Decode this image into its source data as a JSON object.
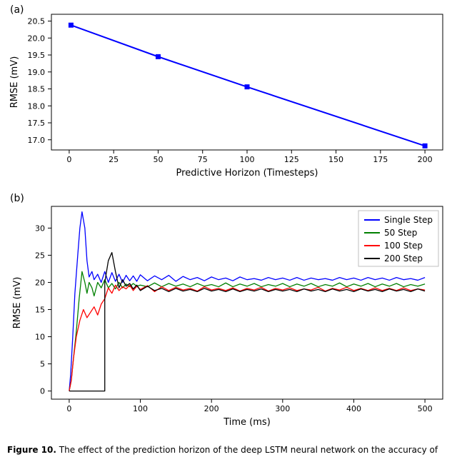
{
  "panel_a": {
    "label": "(a)",
    "type": "line",
    "xlabel": "Predictive Horizon (Timesteps)",
    "ylabel": "RMSE (mV)",
    "xlim": [
      -10,
      210
    ],
    "ylim": [
      16.7,
      20.7
    ],
    "xticks": [
      0,
      25,
      50,
      75,
      100,
      125,
      150,
      175,
      200
    ],
    "yticks": [
      17.0,
      17.5,
      18.0,
      18.5,
      19.0,
      19.5,
      20.0,
      20.5
    ],
    "marker": "square",
    "marker_size": 6,
    "line_color": "#0000ff",
    "line_width": 2,
    "background_color": "#ffffff",
    "points": [
      {
        "x": 1,
        "y": 20.38
      },
      {
        "x": 50,
        "y": 19.45
      },
      {
        "x": 100,
        "y": 18.56
      },
      {
        "x": 200,
        "y": 16.82
      }
    ],
    "label_fontsize": 13,
    "tick_fontsize": 11
  },
  "panel_b": {
    "label": "(b)",
    "type": "line",
    "xlabel": "Time (ms)",
    "ylabel": "RMSE (mV)",
    "xlim": [
      -25,
      525
    ],
    "ylim": [
      -1.5,
      34
    ],
    "xticks": [
      0,
      100,
      200,
      300,
      400,
      500
    ],
    "yticks": [
      0,
      5,
      10,
      15,
      20,
      25,
      30
    ],
    "background_color": "#ffffff",
    "legend": {
      "position": "upper-right",
      "items": [
        {
          "label": "Single Step",
          "color": "#0000ff"
        },
        {
          "label": "50 Step",
          "color": "#008000"
        },
        {
          "label": "100 Step",
          "color": "#ff0000"
        },
        {
          "label": "200 Step",
          "color": "#000000"
        }
      ]
    },
    "line_width": 1.3,
    "series": [
      {
        "name": "Single Step",
        "color": "#0000ff",
        "data": [
          [
            0,
            0
          ],
          [
            2,
            3
          ],
          [
            5,
            10
          ],
          [
            8,
            18
          ],
          [
            12,
            25
          ],
          [
            15,
            30
          ],
          [
            18,
            33
          ],
          [
            22,
            30
          ],
          [
            25,
            24
          ],
          [
            28,
            21
          ],
          [
            32,
            22
          ],
          [
            35,
            20.5
          ],
          [
            40,
            21.5
          ],
          [
            45,
            20
          ],
          [
            50,
            22
          ],
          [
            55,
            20
          ],
          [
            60,
            21.8
          ],
          [
            65,
            20.2
          ],
          [
            70,
            21.5
          ],
          [
            75,
            20
          ],
          [
            80,
            21.3
          ],
          [
            85,
            20.3
          ],
          [
            90,
            21.2
          ],
          [
            95,
            20.2
          ],
          [
            100,
            21.4
          ],
          [
            110,
            20.3
          ],
          [
            120,
            21.2
          ],
          [
            130,
            20.5
          ],
          [
            140,
            21.3
          ],
          [
            150,
            20.2
          ],
          [
            160,
            21.1
          ],
          [
            170,
            20.5
          ],
          [
            180,
            20.9
          ],
          [
            190,
            20.3
          ],
          [
            200,
            21
          ],
          [
            210,
            20.5
          ],
          [
            220,
            20.8
          ],
          [
            230,
            20.3
          ],
          [
            240,
            21
          ],
          [
            250,
            20.5
          ],
          [
            260,
            20.7
          ],
          [
            270,
            20.4
          ],
          [
            280,
            20.9
          ],
          [
            290,
            20.5
          ],
          [
            300,
            20.8
          ],
          [
            310,
            20.4
          ],
          [
            320,
            20.9
          ],
          [
            330,
            20.4
          ],
          [
            340,
            20.8
          ],
          [
            350,
            20.5
          ],
          [
            360,
            20.7
          ],
          [
            370,
            20.4
          ],
          [
            380,
            20.9
          ],
          [
            390,
            20.5
          ],
          [
            400,
            20.8
          ],
          [
            410,
            20.4
          ],
          [
            420,
            20.9
          ],
          [
            430,
            20.5
          ],
          [
            440,
            20.8
          ],
          [
            450,
            20.4
          ],
          [
            460,
            20.9
          ],
          [
            470,
            20.5
          ],
          [
            480,
            20.7
          ],
          [
            490,
            20.4
          ],
          [
            500,
            20.9
          ]
        ]
      },
      {
        "name": "50 Step",
        "color": "#008000",
        "data": [
          [
            0,
            0
          ],
          [
            3,
            2
          ],
          [
            6,
            6
          ],
          [
            10,
            11
          ],
          [
            14,
            17
          ],
          [
            18,
            22
          ],
          [
            22,
            20
          ],
          [
            25,
            18
          ],
          [
            28,
            20
          ],
          [
            32,
            19
          ],
          [
            35,
            17.5
          ],
          [
            40,
            20
          ],
          [
            45,
            19
          ],
          [
            50,
            20.5
          ],
          [
            55,
            19
          ],
          [
            60,
            19.8
          ],
          [
            65,
            18.8
          ],
          [
            70,
            20
          ],
          [
            75,
            19
          ],
          [
            80,
            19.7
          ],
          [
            85,
            19.2
          ],
          [
            90,
            19.8
          ],
          [
            95,
            19.3
          ],
          [
            100,
            19.5
          ],
          [
            110,
            19.2
          ],
          [
            120,
            19.9
          ],
          [
            130,
            19.2
          ],
          [
            140,
            19.8
          ],
          [
            150,
            19.3
          ],
          [
            160,
            19.7
          ],
          [
            170,
            19.2
          ],
          [
            180,
            19.8
          ],
          [
            190,
            19.3
          ],
          [
            200,
            19.6
          ],
          [
            210,
            19.2
          ],
          [
            220,
            19.9
          ],
          [
            230,
            19.2
          ],
          [
            240,
            19.7
          ],
          [
            250,
            19.3
          ],
          [
            260,
            19.8
          ],
          [
            270,
            19.2
          ],
          [
            280,
            19.6
          ],
          [
            290,
            19.3
          ],
          [
            300,
            19.8
          ],
          [
            310,
            19.2
          ],
          [
            320,
            19.7
          ],
          [
            330,
            19.3
          ],
          [
            340,
            19.8
          ],
          [
            350,
            19.2
          ],
          [
            360,
            19.6
          ],
          [
            370,
            19.3
          ],
          [
            380,
            19.9
          ],
          [
            390,
            19.2
          ],
          [
            400,
            19.7
          ],
          [
            410,
            19.3
          ],
          [
            420,
            19.8
          ],
          [
            430,
            19.2
          ],
          [
            440,
            19.7
          ],
          [
            450,
            19.3
          ],
          [
            460,
            19.8
          ],
          [
            470,
            19.2
          ],
          [
            480,
            19.6
          ],
          [
            490,
            19.3
          ],
          [
            500,
            19.7
          ]
        ]
      },
      {
        "name": "100 Step",
        "color": "#ff0000",
        "data": [
          [
            0,
            0
          ],
          [
            3,
            2
          ],
          [
            6,
            6
          ],
          [
            10,
            10
          ],
          [
            15,
            13
          ],
          [
            20,
            15
          ],
          [
            25,
            13.5
          ],
          [
            30,
            14.5
          ],
          [
            35,
            15.5
          ],
          [
            40,
            14
          ],
          [
            45,
            16
          ],
          [
            50,
            17
          ],
          [
            55,
            19
          ],
          [
            60,
            18
          ],
          [
            65,
            19.5
          ],
          [
            70,
            18.5
          ],
          [
            75,
            19.2
          ],
          [
            80,
            18.8
          ],
          [
            85,
            19.5
          ],
          [
            90,
            18.5
          ],
          [
            95,
            19.3
          ],
          [
            100,
            18.7
          ],
          [
            110,
            19.4
          ],
          [
            120,
            18.3
          ],
          [
            130,
            19.2
          ],
          [
            140,
            18.5
          ],
          [
            150,
            19.1
          ],
          [
            160,
            18.6
          ],
          [
            170,
            18.9
          ],
          [
            180,
            18.4
          ],
          [
            190,
            19.2
          ],
          [
            200,
            18.6
          ],
          [
            210,
            18.9
          ],
          [
            220,
            18.5
          ],
          [
            230,
            19.0
          ],
          [
            240,
            18.4
          ],
          [
            250,
            18.9
          ],
          [
            260,
            18.6
          ],
          [
            270,
            19.1
          ],
          [
            280,
            18.4
          ],
          [
            290,
            18.9
          ],
          [
            300,
            18.6
          ],
          [
            310,
            19.0
          ],
          [
            320,
            18.5
          ],
          [
            330,
            18.8
          ],
          [
            340,
            18.6
          ],
          [
            350,
            19.1
          ],
          [
            360,
            18.4
          ],
          [
            370,
            18.9
          ],
          [
            380,
            18.6
          ],
          [
            390,
            19.1
          ],
          [
            400,
            18.5
          ],
          [
            410,
            18.9
          ],
          [
            420,
            18.5
          ],
          [
            430,
            19.0
          ],
          [
            440,
            18.5
          ],
          [
            450,
            18.9
          ],
          [
            460,
            18.5
          ],
          [
            470,
            19.0
          ],
          [
            480,
            18.5
          ],
          [
            490,
            18.8
          ],
          [
            500,
            18.6
          ]
        ]
      },
      {
        "name": "200 Step",
        "color": "#000000",
        "data": [
          [
            0,
            0
          ],
          [
            50,
            0
          ],
          [
            50,
            20
          ],
          [
            55,
            24
          ],
          [
            60,
            25.5
          ],
          [
            65,
            22
          ],
          [
            70,
            19
          ],
          [
            75,
            20.5
          ],
          [
            80,
            19.3
          ],
          [
            85,
            19.8
          ],
          [
            90,
            18.8
          ],
          [
            95,
            19.5
          ],
          [
            100,
            18.5
          ],
          [
            110,
            19.3
          ],
          [
            120,
            18.5
          ],
          [
            130,
            18.9
          ],
          [
            140,
            18.3
          ],
          [
            150,
            18.9
          ],
          [
            160,
            18.4
          ],
          [
            170,
            18.7
          ],
          [
            180,
            18.3
          ],
          [
            190,
            18.9
          ],
          [
            200,
            18.4
          ],
          [
            210,
            18.7
          ],
          [
            220,
            18.3
          ],
          [
            230,
            18.8
          ],
          [
            240,
            18.3
          ],
          [
            250,
            18.7
          ],
          [
            260,
            18.4
          ],
          [
            270,
            18.8
          ],
          [
            280,
            18.3
          ],
          [
            290,
            18.7
          ],
          [
            300,
            18.4
          ],
          [
            310,
            18.7
          ],
          [
            320,
            18.3
          ],
          [
            330,
            18.8
          ],
          [
            340,
            18.4
          ],
          [
            350,
            18.7
          ],
          [
            360,
            18.3
          ],
          [
            370,
            18.8
          ],
          [
            380,
            18.4
          ],
          [
            390,
            18.7
          ],
          [
            400,
            18.3
          ],
          [
            410,
            18.8
          ],
          [
            420,
            18.4
          ],
          [
            430,
            18.7
          ],
          [
            440,
            18.3
          ],
          [
            450,
            18.8
          ],
          [
            460,
            18.4
          ],
          [
            470,
            18.7
          ],
          [
            480,
            18.3
          ],
          [
            490,
            18.8
          ],
          [
            500,
            18.4
          ]
        ]
      }
    ],
    "label_fontsize": 13,
    "tick_fontsize": 11
  },
  "caption": {
    "prefix": "Figure 10.",
    "text": " The effect of the prediction horizon of the deep LSTM neural network on the accuracy of"
  }
}
